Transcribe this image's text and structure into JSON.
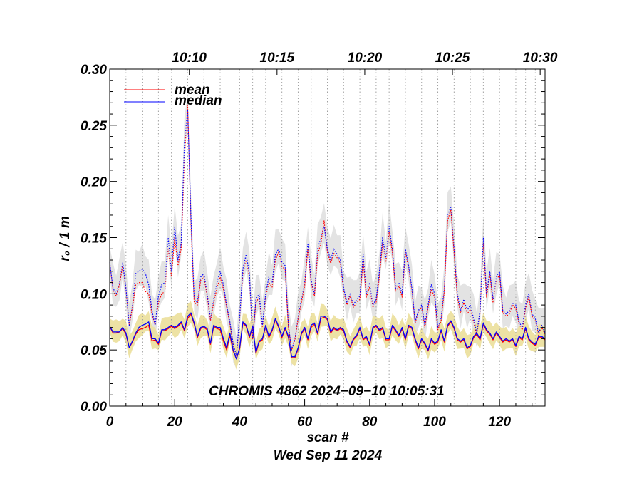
{
  "chart_data": {
    "type": "line",
    "ylabel": "r₀ / 1 m",
    "xlabel": "scan #",
    "date_label": "Wed Sep 11 2024",
    "annotation": "CHROMIS 4862 2024−09−10 10:05:31",
    "xlim": [
      0,
      134
    ],
    "ylim": [
      0,
      0.3
    ],
    "x_ticks": [
      "0",
      "20",
      "40",
      "60",
      "80",
      "100",
      "120"
    ],
    "x_tick_values": [
      0,
      20,
      40,
      60,
      80,
      100,
      120
    ],
    "y_ticks": [
      "0.00",
      "0.05",
      "0.10",
      "0.15",
      "0.20",
      "0.25",
      "0.30"
    ],
    "y_tick_values": [
      0,
      0.05,
      0.1,
      0.15,
      0.2,
      0.25,
      0.3
    ],
    "top_time_ticks": [
      {
        "label": "10:10",
        "scan": 24.5
      },
      {
        "label": "10:15",
        "scan": 51.5
      },
      {
        "label": "10:20",
        "scan": 78.5
      },
      {
        "label": "10:25",
        "scan": 105.5
      },
      {
        "label": "10:30",
        "scan": 132.5
      }
    ],
    "scan_gridlines": [
      0,
      5,
      10,
      15,
      19,
      24,
      29,
      34,
      40,
      44,
      48,
      53,
      58,
      62,
      67,
      72,
      77,
      82,
      86,
      91,
      96,
      101,
      106,
      111,
      115,
      120,
      125,
      128,
      131,
      134
    ],
    "legend": [
      {
        "name": "mean",
        "color": "#ff0000"
      },
      {
        "name": "median",
        "color": "#0000ff"
      }
    ],
    "colors": {
      "mean": "#ff0000",
      "median": "#0000ff",
      "band_low": "#ede2a4",
      "band_high": "#e3e3e3",
      "grid": "#a0a0a0"
    },
    "series": [
      {
        "name": "median (high r0)",
        "values": [
          0.128,
          0.105,
          0.1,
          0.11,
          0.128,
          0.105,
          0.072,
          0.09,
          0.118,
          0.12,
          0.122,
          0.118,
          0.108,
          0.085,
          0.072,
          0.098,
          0.108,
          0.11,
          0.15,
          0.12,
          0.16,
          0.13,
          0.145,
          0.235,
          0.264,
          0.168,
          0.095,
          0.092,
          0.115,
          0.118,
          0.1,
          0.078,
          0.095,
          0.11,
          0.12,
          0.108,
          0.09,
          0.075,
          0.055,
          0.045,
          0.08,
          0.122,
          0.135,
          0.118,
          0.06,
          0.095,
          0.1,
          0.072,
          0.1,
          0.115,
          0.11,
          0.135,
          0.14,
          0.128,
          0.125,
          0.072,
          0.05,
          0.06,
          0.08,
          0.095,
          0.11,
          0.145,
          0.112,
          0.1,
          0.14,
          0.15,
          0.16,
          0.14,
          0.13,
          0.14,
          0.135,
          0.13,
          0.105,
          0.092,
          0.1,
          0.09,
          0.095,
          0.098,
          0.135,
          0.1,
          0.11,
          0.09,
          0.095,
          0.12,
          0.15,
          0.132,
          0.16,
          0.14,
          0.105,
          0.11,
          0.1,
          0.14,
          0.125,
          0.105,
          0.075,
          0.085,
          0.09,
          0.072,
          0.09,
          0.108,
          0.1,
          0.07,
          0.078,
          0.105,
          0.17,
          0.177,
          0.14,
          0.1,
          0.085,
          0.095,
          0.085,
          0.09,
          0.078,
          0.065,
          0.085,
          0.15,
          0.1,
          0.12,
          0.095,
          0.115,
          0.12,
          0.085,
          0.082,
          0.085,
          0.092,
          0.09,
          0.075,
          0.07,
          0.09,
          0.1,
          0.082,
          0.078,
          0.065,
          0.072,
          0.065
        ]
      },
      {
        "name": "mean (high r0)",
        "values": [
          0.127,
          0.103,
          0.098,
          0.108,
          0.125,
          0.103,
          0.072,
          0.088,
          0.108,
          0.11,
          0.11,
          0.102,
          0.1,
          0.082,
          0.072,
          0.092,
          0.1,
          0.102,
          0.14,
          0.115,
          0.15,
          0.125,
          0.14,
          0.22,
          0.268,
          0.16,
          0.092,
          0.09,
          0.112,
          0.115,
          0.098,
          0.076,
          0.092,
          0.105,
          0.115,
          0.104,
          0.088,
          0.073,
          0.054,
          0.045,
          0.078,
          0.118,
          0.13,
          0.114,
          0.06,
          0.092,
          0.097,
          0.07,
          0.097,
          0.11,
          0.106,
          0.13,
          0.137,
          0.124,
          0.122,
          0.07,
          0.05,
          0.059,
          0.078,
          0.092,
          0.107,
          0.14,
          0.11,
          0.098,
          0.135,
          0.145,
          0.165,
          0.137,
          0.127,
          0.136,
          0.132,
          0.127,
          0.102,
          0.09,
          0.098,
          0.088,
          0.092,
          0.095,
          0.13,
          0.097,
          0.106,
          0.088,
          0.092,
          0.115,
          0.145,
          0.128,
          0.155,
          0.137,
          0.102,
          0.107,
          0.097,
          0.137,
          0.122,
          0.102,
          0.074,
          0.083,
          0.088,
          0.07,
          0.088,
          0.104,
          0.097,
          0.068,
          0.076,
          0.102,
          0.165,
          0.175,
          0.137,
          0.097,
          0.083,
          0.092,
          0.082,
          0.086,
          0.075,
          0.063,
          0.083,
          0.145,
          0.097,
          0.117,
          0.092,
          0.112,
          0.117,
          0.083,
          0.08,
          0.082,
          0.09,
          0.087,
          0.073,
          0.068,
          0.087,
          0.097,
          0.08,
          0.076,
          0.063,
          0.07,
          0.063
        ]
      },
      {
        "name": "median (low r0)",
        "values": [
          0.071,
          0.066,
          0.066,
          0.066,
          0.07,
          0.065,
          0.052,
          0.058,
          0.065,
          0.07,
          0.072,
          0.073,
          0.075,
          0.06,
          0.06,
          0.056,
          0.068,
          0.068,
          0.07,
          0.072,
          0.07,
          0.072,
          0.075,
          0.068,
          0.08,
          0.083,
          0.074,
          0.062,
          0.07,
          0.071,
          0.069,
          0.056,
          0.072,
          0.07,
          0.07,
          0.06,
          0.052,
          0.065,
          0.05,
          0.042,
          0.052,
          0.075,
          0.072,
          0.062,
          0.071,
          0.048,
          0.058,
          0.06,
          0.072,
          0.062,
          0.068,
          0.078,
          0.071,
          0.062,
          0.07,
          0.062,
          0.044,
          0.044,
          0.052,
          0.065,
          0.07,
          0.06,
          0.072,
          0.074,
          0.065,
          0.08,
          0.08,
          0.078,
          0.066,
          0.07,
          0.068,
          0.07,
          0.068,
          0.058,
          0.053,
          0.06,
          0.063,
          0.07,
          0.06,
          0.062,
          0.055,
          0.07,
          0.072,
          0.068,
          0.07,
          0.06,
          0.06,
          0.072,
          0.068,
          0.063,
          0.07,
          0.06,
          0.072,
          0.07,
          0.06,
          0.052,
          0.06,
          0.056,
          0.05,
          0.06,
          0.056,
          0.058,
          0.068,
          0.058,
          0.072,
          0.076,
          0.07,
          0.06,
          0.058,
          0.06,
          0.052,
          0.054,
          0.062,
          0.065,
          0.06,
          0.074,
          0.068,
          0.065,
          0.06,
          0.066,
          0.062,
          0.058,
          0.06,
          0.058,
          0.06,
          0.054,
          0.062,
          0.06,
          0.07,
          0.06,
          0.057,
          0.055,
          0.062,
          0.062,
          0.06
        ]
      },
      {
        "name": "mean (low r0)",
        "values": [
          0.071,
          0.065,
          0.065,
          0.066,
          0.069,
          0.064,
          0.052,
          0.057,
          0.064,
          0.068,
          0.069,
          0.07,
          0.072,
          0.058,
          0.059,
          0.055,
          0.067,
          0.067,
          0.069,
          0.071,
          0.069,
          0.071,
          0.074,
          0.067,
          0.078,
          0.082,
          0.073,
          0.061,
          0.069,
          0.07,
          0.068,
          0.055,
          0.071,
          0.069,
          0.068,
          0.058,
          0.05,
          0.063,
          0.049,
          0.042,
          0.051,
          0.074,
          0.071,
          0.061,
          0.07,
          0.047,
          0.057,
          0.059,
          0.071,
          0.061,
          0.067,
          0.077,
          0.07,
          0.061,
          0.069,
          0.061,
          0.043,
          0.043,
          0.051,
          0.064,
          0.069,
          0.059,
          0.07,
          0.073,
          0.064,
          0.078,
          0.079,
          0.077,
          0.065,
          0.069,
          0.067,
          0.069,
          0.067,
          0.057,
          0.052,
          0.059,
          0.062,
          0.069,
          0.059,
          0.061,
          0.054,
          0.069,
          0.071,
          0.067,
          0.069,
          0.059,
          0.059,
          0.071,
          0.067,
          0.062,
          0.069,
          0.059,
          0.071,
          0.069,
          0.059,
          0.051,
          0.059,
          0.055,
          0.049,
          0.059,
          0.055,
          0.057,
          0.067,
          0.057,
          0.071,
          0.075,
          0.069,
          0.059,
          0.057,
          0.059,
          0.051,
          0.053,
          0.061,
          0.064,
          0.059,
          0.073,
          0.067,
          0.064,
          0.059,
          0.065,
          0.061,
          0.057,
          0.059,
          0.057,
          0.059,
          0.053,
          0.061,
          0.059,
          0.069,
          0.059,
          0.056,
          0.054,
          0.061,
          0.061,
          0.059
        ]
      }
    ]
  }
}
